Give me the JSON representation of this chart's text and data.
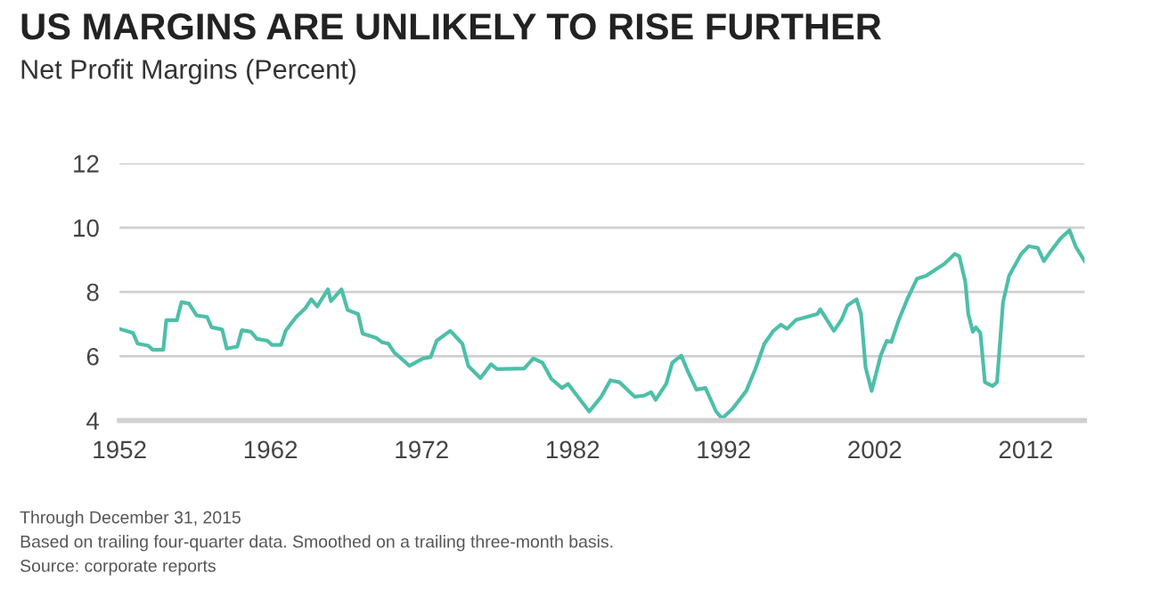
{
  "chart_data": {
    "type": "line",
    "title": "US MARGINS ARE UNLIKELY TO RISE FURTHER",
    "subtitle": "Net Profit Margins (Percent)",
    "annotations": [
      "Through December 31, 2015",
      "Based on trailing four-quarter data. Smoothed on a trailing three-month basis.",
      "Source: corporate reports"
    ],
    "x": [
      1952,
      1952.9,
      1953.2,
      1953.9,
      1954.2,
      1954.9,
      1955.1,
      1955.8,
      1956.1,
      1956.6,
      1957.1,
      1957.8,
      1958.1,
      1958.8,
      1959.1,
      1959.8,
      1960.1,
      1960.7,
      1961.1,
      1961.8,
      1962.1,
      1962.7,
      1963,
      1963.7,
      1964.3,
      1964.7,
      1965.1,
      1965.8,
      1966,
      1966.7,
      1967.1,
      1967.8,
      1968.1,
      1969,
      1969.4,
      1969.8,
      1970.2,
      1970.6,
      1971.2,
      1972.1,
      1972.6,
      1973,
      1973.9,
      1974.7,
      1975.1,
      1975.9,
      1976.6,
      1977,
      1978.8,
      1979.4,
      1980,
      1980.6,
      1981.3,
      1981.7,
      1983.1,
      1983.9,
      1984.5,
      1985.1,
      1986.1,
      1986.7,
      1987.2,
      1987.5,
      1988.2,
      1988.6,
      1989.2,
      1989.6,
      1990.2,
      1990.8,
      1991.5,
      1991.9,
      1992.6,
      1993.5,
      1994.1,
      1994.7,
      1995.3,
      1995.8,
      1996.2,
      1996.8,
      1998.2,
      1998.4,
      1998.8,
      1999.3,
      1999.8,
      2000.2,
      2000.8,
      2001.1,
      2001.4,
      2001.8,
      2002.4,
      2002.8,
      2003.1,
      2003.6,
      2004.2,
      2004.8,
      2005.4,
      2006.6,
      2007.3,
      2007.6,
      2008,
      2008.2,
      2008.5,
      2008.7,
      2009,
      2009.3,
      2009.8,
      2010.1,
      2010.5,
      2010.9,
      2011.7,
      2012.2,
      2012.8,
      2013.2,
      2013.7,
      2014.3,
      2014.9,
      2015.3,
      2015.9
    ],
    "series": [
      {
        "color": "#4dbfa8",
        "values": [
          6.85,
          6.72,
          6.39,
          6.33,
          6.2,
          6.2,
          7.12,
          7.12,
          7.68,
          7.64,
          7.27,
          7.22,
          6.9,
          6.83,
          6.24,
          6.3,
          6.81,
          6.76,
          6.54,
          6.48,
          6.35,
          6.35,
          6.79,
          7.22,
          7.49,
          7.77,
          7.55,
          8.08,
          7.71,
          8.08,
          7.44,
          7.31,
          6.7,
          6.57,
          6.43,
          6.39,
          6.11,
          5.95,
          5.7,
          5.93,
          5.97,
          6.48,
          6.79,
          6.39,
          5.69,
          5.32,
          5.75,
          5.6,
          5.62,
          5.93,
          5.8,
          5.29,
          5.01,
          5.14,
          4.28,
          4.74,
          5.25,
          5.19,
          4.74,
          4.77,
          4.88,
          4.64,
          5.14,
          5.8,
          6.02,
          5.56,
          4.96,
          5.01,
          4.28,
          4.06,
          4.37,
          4.92,
          5.6,
          6.39,
          6.79,
          6.98,
          6.85,
          7.13,
          7.31,
          7.46,
          7.16,
          6.79,
          7.13,
          7.58,
          7.77,
          7.31,
          5.65,
          4.92,
          6.02,
          6.48,
          6.44,
          7.13,
          7.82,
          8.41,
          8.5,
          8.87,
          9.18,
          9.11,
          8.32,
          7.31,
          6.76,
          6.9,
          6.72,
          5.19,
          5.07,
          5.19,
          7.68,
          8.5,
          9.18,
          9.42,
          9.37,
          8.96,
          9.29,
          9.66,
          9.92,
          9.42,
          8.96
        ]
      }
    ],
    "xlim": [
      1952,
      2015.9
    ],
    "xticks": [
      1952,
      1962,
      1972,
      1982,
      1992,
      2002,
      2012
    ],
    "ylim": [
      4,
      12
    ],
    "yticks": [
      4,
      6,
      8,
      10,
      12
    ],
    "grid": "y",
    "line_style": "solid",
    "marker": "none"
  }
}
